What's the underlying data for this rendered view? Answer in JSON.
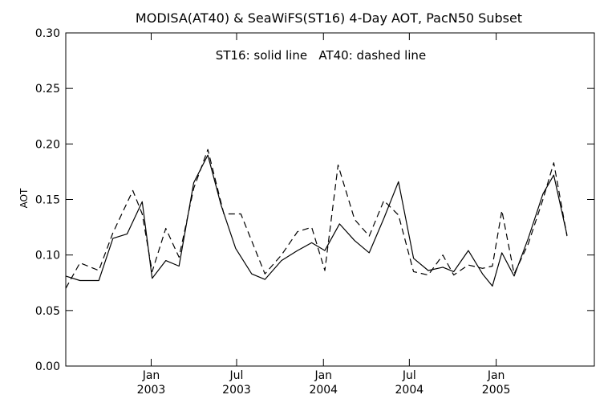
{
  "chart_data": {
    "type": "line",
    "title": "MODISA(AT40) & SeaWiFS(ST16) 4-Day AOT, PacN50 Subset",
    "annotation": "ST16: solid line   AT40: dashed line",
    "ylabel": "AOT",
    "ylim": [
      0.0,
      0.3
    ],
    "yticks": [
      0.0,
      0.05,
      0.1,
      0.15,
      0.2,
      0.25,
      0.3
    ],
    "ytick_labels": [
      "0.00",
      "0.05",
      "0.10",
      "0.15",
      "0.20",
      "0.25",
      "0.30"
    ],
    "xlim": [
      "2002-07-04",
      "2005-07-28"
    ],
    "xticks": [
      {
        "date": "2003-01-01",
        "month": "Jan",
        "year": "2003"
      },
      {
        "date": "2003-07-01",
        "month": "Jul",
        "year": "2003"
      },
      {
        "date": "2004-01-01",
        "month": "Jan",
        "year": "2004"
      },
      {
        "date": "2004-07-01",
        "month": "Jul",
        "year": "2004"
      },
      {
        "date": "2005-01-01",
        "month": "Jan",
        "year": "2005"
      }
    ],
    "grid": false,
    "series": [
      {
        "name": "ST16",
        "style": "solid",
        "color": "#000000",
        "points": [
          [
            "2002-07-04",
            0.081
          ],
          [
            "2002-08-03",
            0.077
          ],
          [
            "2002-09-12",
            0.077
          ],
          [
            "2002-10-12",
            0.115
          ],
          [
            "2002-11-11",
            0.119
          ],
          [
            "2002-12-13",
            0.148
          ],
          [
            "2003-01-03",
            0.079
          ],
          [
            "2003-02-01",
            0.095
          ],
          [
            "2003-03-01",
            0.09
          ],
          [
            "2003-04-01",
            0.165
          ],
          [
            "2003-05-01",
            0.19
          ],
          [
            "2003-05-29",
            0.145
          ],
          [
            "2003-06-29",
            0.106
          ],
          [
            "2003-08-02",
            0.083
          ],
          [
            "2003-08-30",
            0.078
          ],
          [
            "2003-10-04",
            0.095
          ],
          [
            "2003-11-07",
            0.104
          ],
          [
            "2003-12-07",
            0.111
          ],
          [
            "2004-01-04",
            0.104
          ],
          [
            "2004-02-04",
            0.128
          ],
          [
            "2004-03-07",
            0.113
          ],
          [
            "2004-04-07",
            0.102
          ],
          [
            "2004-05-08",
            0.133
          ],
          [
            "2004-06-08",
            0.166
          ],
          [
            "2004-07-10",
            0.097
          ],
          [
            "2004-08-10",
            0.086
          ],
          [
            "2004-09-10",
            0.089
          ],
          [
            "2004-10-03",
            0.085
          ],
          [
            "2004-11-03",
            0.104
          ],
          [
            "2004-12-03",
            0.083
          ],
          [
            "2004-12-24",
            0.072
          ],
          [
            "2005-01-13",
            0.102
          ],
          [
            "2005-02-08",
            0.081
          ],
          [
            "2005-03-10",
            0.115
          ],
          [
            "2005-04-10",
            0.155
          ],
          [
            "2005-05-03",
            0.172
          ],
          [
            "2005-05-31",
            0.118
          ]
        ]
      },
      {
        "name": "AT40",
        "style": "dashed",
        "color": "#000000",
        "points": [
          [
            "2002-07-04",
            0.07
          ],
          [
            "2002-08-03",
            0.093
          ],
          [
            "2002-09-12",
            0.086
          ],
          [
            "2002-10-12",
            0.12
          ],
          [
            "2002-11-23",
            0.158
          ],
          [
            "2002-12-13",
            0.137
          ],
          [
            "2003-01-03",
            0.085
          ],
          [
            "2003-02-01",
            0.124
          ],
          [
            "2003-03-01",
            0.098
          ],
          [
            "2003-04-01",
            0.16
          ],
          [
            "2003-05-01",
            0.195
          ],
          [
            "2003-06-04",
            0.137
          ],
          [
            "2003-06-29",
            0.137
          ],
          [
            "2003-07-10",
            0.137
          ],
          [
            "2003-08-30",
            0.083
          ],
          [
            "2003-10-04",
            0.1
          ],
          [
            "2003-11-07",
            0.121
          ],
          [
            "2003-12-07",
            0.125
          ],
          [
            "2004-01-04",
            0.086
          ],
          [
            "2004-02-01",
            0.181
          ],
          [
            "2004-03-07",
            0.132
          ],
          [
            "2004-04-07",
            0.117
          ],
          [
            "2004-05-08",
            0.149
          ],
          [
            "2004-06-08",
            0.136
          ],
          [
            "2004-07-10",
            0.085
          ],
          [
            "2004-08-10",
            0.082
          ],
          [
            "2004-09-10",
            0.1
          ],
          [
            "2004-10-03",
            0.082
          ],
          [
            "2004-11-03",
            0.091
          ],
          [
            "2004-12-03",
            0.088
          ],
          [
            "2004-12-24",
            0.09
          ],
          [
            "2005-01-13",
            0.14
          ],
          [
            "2005-02-08",
            0.083
          ],
          [
            "2005-03-10",
            0.11
          ],
          [
            "2005-04-10",
            0.15
          ],
          [
            "2005-05-03",
            0.183
          ],
          [
            "2005-05-31",
            0.117
          ]
        ]
      }
    ]
  }
}
